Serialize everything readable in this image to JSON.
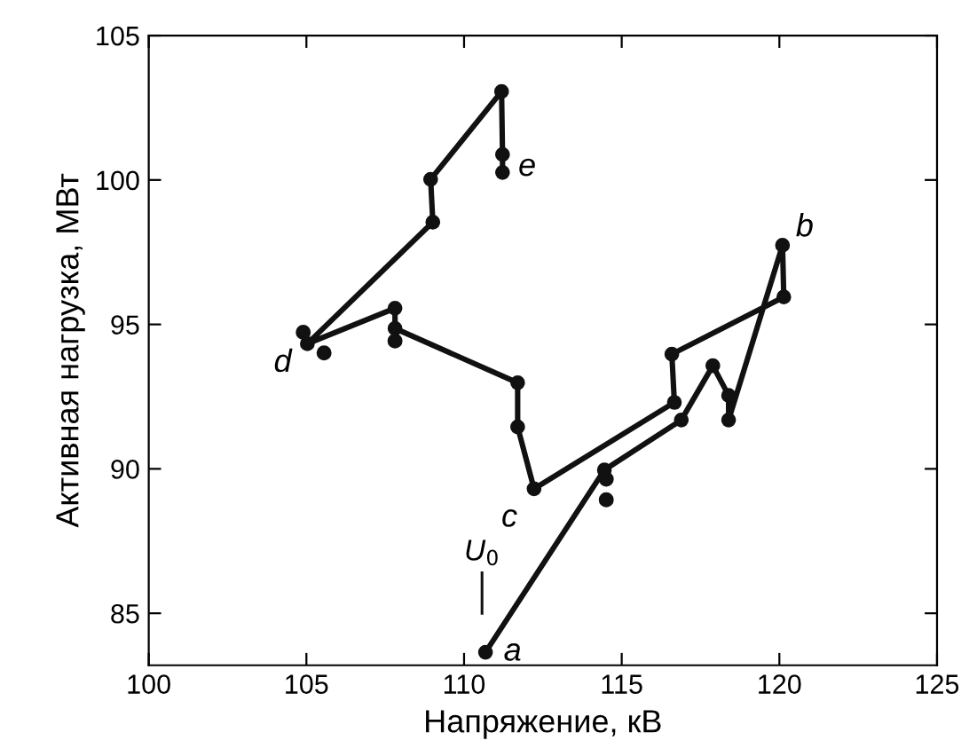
{
  "chart_data": {
    "type": "line",
    "xlabel": "Напряжение, кВ",
    "ylabel": "Активная нагрузка, МВт",
    "xlim": [
      100,
      125
    ],
    "xticks": [
      100,
      105,
      110,
      115,
      120,
      125
    ],
    "ylim": [
      83.2,
      105
    ],
    "yticks": [
      85,
      90,
      95,
      100,
      105
    ],
    "grid": false,
    "marker": "circle",
    "line_style": "solid",
    "series": [
      {
        "color": "#111111",
        "x": [
          110.68,
          114.45,
          116.89,
          117.89,
          118.39,
          118.39,
          120.1,
          120.14,
          116.59,
          116.67,
          112.22,
          111.7,
          111.7,
          107.81,
          107.81,
          105.03,
          109.01,
          108.94,
          111.19,
          111.22,
          111.22
        ],
        "values": [
          83.65,
          89.96,
          91.69,
          93.57,
          92.54,
          91.69,
          97.74,
          95.95,
          93.97,
          92.3,
          89.31,
          91.45,
          92.98,
          94.86,
          95.56,
          94.33,
          98.54,
          100.02,
          103.06,
          100.88,
          100.26
        ]
      },
      {
        "type": "scatter",
        "color": "#111111",
        "x": [
          114.51,
          114.51,
          107.81,
          104.9,
          105.56
        ],
        "values": [
          89.64,
          88.93,
          94.43,
          94.73,
          94.01
        ]
      }
    ],
    "ref_lines": [
      {
        "axis": "x",
        "value": 110.57,
        "label": "U$_{0}$"
      }
    ],
    "annotations": [
      {
        "text": "a",
        "x": 110.68,
        "y": 83.65
      },
      {
        "text": "b",
        "x": 120.1,
        "y": 97.74
      },
      {
        "text": "c",
        "x": 112.22,
        "y": 89.31
      },
      {
        "text": "d",
        "x": 105.03,
        "y": 94.33
      },
      {
        "text": "e",
        "x": 111.22,
        "y": 100.26
      }
    ]
  }
}
